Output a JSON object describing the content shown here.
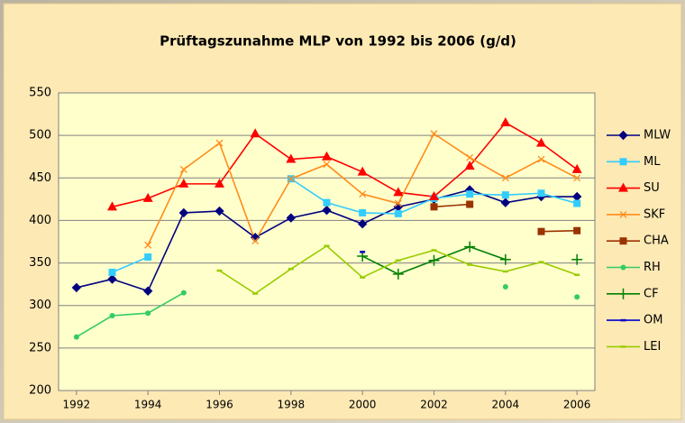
{
  "chart_data": {
    "type": "line",
    "title": "Prüftagszunahme MLP von 1992 bis 2006 (g/d)",
    "x": [
      1992,
      1993,
      1994,
      1995,
      1996,
      1997,
      1998,
      1999,
      2000,
      2001,
      2002,
      2003,
      2004,
      2005,
      2006
    ],
    "xlim": [
      1991.5,
      2006.5
    ],
    "xticks": [
      1992,
      1994,
      1996,
      1998,
      2000,
      2002,
      2004,
      2006
    ],
    "ylim": [
      200,
      550
    ],
    "yticks": [
      200,
      250,
      300,
      350,
      400,
      450,
      500,
      550
    ],
    "grid": true,
    "legend": "right",
    "series": [
      {
        "name": "MLW",
        "color": "#000080",
        "marker": "diamond",
        "values": [
          321,
          331,
          317,
          409,
          411,
          380,
          403,
          412,
          396,
          416,
          425,
          436,
          421,
          428,
          428
        ]
      },
      {
        "name": "ML",
        "color": "#33ccff",
        "marker": "square",
        "values": [
          null,
          339,
          357,
          null,
          null,
          null,
          449,
          421,
          409,
          408,
          426,
          431,
          430,
          432,
          420
        ]
      },
      {
        "name": "SU",
        "color": "#ff0000",
        "marker": "triangle",
        "values": [
          null,
          416,
          426,
          443,
          443,
          502,
          472,
          475,
          457,
          433,
          428,
          464,
          515,
          491,
          460
        ]
      },
      {
        "name": "SKF",
        "color": "#ff8c1a",
        "marker": "x",
        "values": [
          null,
          null,
          371,
          460,
          491,
          376,
          449,
          466,
          431,
          420,
          502,
          474,
          450,
          472,
          450
        ]
      },
      {
        "name": "CHA",
        "color": "#993300",
        "marker": "square",
        "values": [
          null,
          null,
          null,
          null,
          null,
          null,
          null,
          null,
          null,
          null,
          416,
          419,
          null,
          387,
          388
        ]
      },
      {
        "name": "RH",
        "color": "#33cc66",
        "marker": "circle",
        "values": [
          263,
          288,
          291,
          315,
          null,
          null,
          null,
          null,
          null,
          null,
          null,
          null,
          322,
          null,
          310
        ]
      },
      {
        "name": "CF",
        "color": "#008000",
        "marker": "plus",
        "values": [
          null,
          null,
          null,
          null,
          null,
          null,
          null,
          null,
          358,
          337,
          353,
          369,
          354,
          null,
          354
        ]
      },
      {
        "name": "OM",
        "color": "#0000cc",
        "marker": "dash",
        "values": [
          null,
          null,
          null,
          null,
          null,
          null,
          null,
          null,
          363,
          null,
          null,
          null,
          null,
          null,
          null
        ]
      },
      {
        "name": "LEI",
        "color": "#99cc00",
        "marker": "dash",
        "values": [
          null,
          null,
          null,
          null,
          341,
          314,
          343,
          370,
          333,
          353,
          365,
          348,
          340,
          351,
          336
        ]
      }
    ]
  }
}
